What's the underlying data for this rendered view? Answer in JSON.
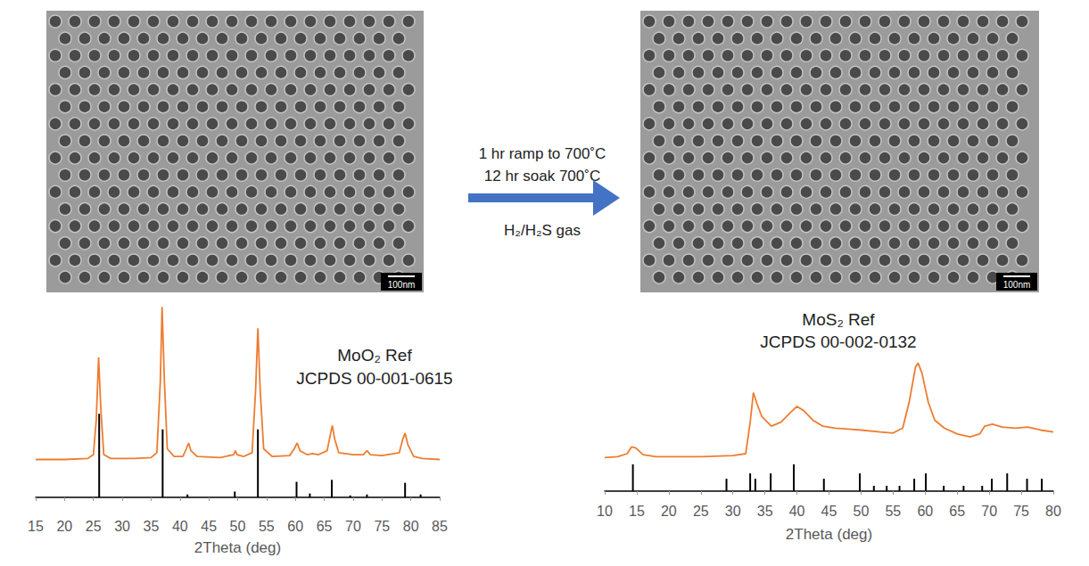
{
  "panels": {
    "sem_before": {
      "scale_bar": "100nm"
    },
    "sem_after": {
      "scale_bar": "100nm"
    },
    "process": {
      "lines": [
        "1 hr ramp to 700˚C",
        "12 hr soak 700˚C",
        "H₂/H₂S gas"
      ]
    }
  },
  "chart_data": [
    {
      "type": "line",
      "x_label": "2Theta (deg)",
      "annotations": [
        "MoO₂ Ref",
        "JCPDS 00-001-0615"
      ],
      "xlim": [
        15,
        85
      ],
      "xticks": [
        15,
        20,
        25,
        30,
        35,
        40,
        45,
        50,
        55,
        60,
        65,
        70,
        75,
        80,
        85
      ],
      "ylim": [
        0,
        100
      ],
      "tick_labels": "x",
      "series": [
        {
          "type": "line",
          "color": "#ed7d31",
          "x": [
            15,
            20,
            24,
            25,
            25.5,
            25.9,
            26.3,
            26.8,
            28,
            32,
            35,
            36,
            36.6,
            36.9,
            37.3,
            37.8,
            39,
            40.5,
            41.1,
            41.5,
            41.9,
            43,
            47,
            49.3,
            49.6,
            49.9,
            51,
            52.5,
            53.1,
            53.5,
            53.9,
            54.5,
            56,
            59,
            59.8,
            60.3,
            60.8,
            62,
            63,
            64,
            65.5,
            66.1,
            66.4,
            66.8,
            67.5,
            70,
            71.8,
            72.4,
            73,
            75,
            78,
            78.6,
            79,
            79.5,
            80.5,
            82,
            85
          ],
          "values": [
            19.5,
            19.5,
            20,
            22,
            40,
            72,
            45,
            22,
            20,
            20,
            20.5,
            23,
            60,
            98,
            60,
            25,
            21,
            21,
            25,
            28,
            24,
            21,
            20.5,
            22,
            24,
            22,
            21,
            23,
            55,
            87,
            55,
            25,
            21,
            21.5,
            25,
            28,
            24,
            22,
            22.5,
            22,
            24,
            33,
            37,
            30,
            23,
            22,
            22,
            24,
            22,
            21.5,
            23,
            30,
            33,
            27,
            21,
            20,
            19.5
          ]
        },
        {
          "type": "bar",
          "color": "#000000",
          "x": [
            26.0,
            37.0,
            41.3,
            49.5,
            53.5,
            60.2,
            62.5,
            66.3,
            69.5,
            72.4,
            79.0,
            81.7
          ],
          "values": [
            43,
            35,
            1.5,
            3,
            35,
            8,
            2,
            9,
            1,
            1.5,
            7.5,
            1.5
          ]
        }
      ]
    },
    {
      "type": "line",
      "x_label": "2Theta (deg)",
      "annotations": [
        "MoS₂ Ref",
        "JCPDS 00-002-0132"
      ],
      "xlim": [
        10,
        80
      ],
      "xticks": [
        10,
        15,
        20,
        25,
        30,
        35,
        40,
        45,
        50,
        55,
        60,
        65,
        70,
        75,
        80
      ],
      "ylim": [
        0,
        100
      ],
      "tick_labels": "x",
      "series": [
        {
          "type": "line",
          "color": "#ed7d31",
          "x": [
            10,
            12,
            13.5,
            14.2,
            14.8,
            16,
            18,
            25,
            30,
            32,
            32.7,
            33.2,
            33.8,
            34.5,
            36,
            37.5,
            39,
            40,
            41,
            42.5,
            44,
            46,
            48,
            50,
            53,
            55,
            56.5,
            57.5,
            58.5,
            58.9,
            59.5,
            60.5,
            61.5,
            63,
            65,
            67,
            68.5,
            69.3,
            70.5,
            72,
            74,
            76,
            78,
            80
          ],
          "values": [
            17,
            17.5,
            19,
            22.5,
            22,
            18.5,
            17.5,
            17.5,
            18,
            19,
            35,
            50,
            44,
            38,
            33,
            35,
            40,
            43,
            41,
            36,
            33,
            32,
            31.5,
            31,
            30,
            29.5,
            32,
            45,
            63,
            65,
            60,
            45,
            36,
            32,
            29,
            27.5,
            29,
            33,
            34,
            32.5,
            32,
            32.5,
            31,
            30
          ]
        },
        {
          "type": "bar",
          "color": "#000000",
          "x": [
            14.4,
            29.0,
            32.7,
            33.5,
            35.9,
            39.5,
            44.2,
            49.8,
            52.0,
            54.0,
            56.0,
            58.3,
            60.1,
            62.9,
            66.0,
            68.9,
            70.4,
            72.8,
            75.9,
            78.2
          ],
          "values": [
            13.6,
            6.3,
            9,
            6.3,
            9,
            13.6,
            6.3,
            9,
            2.7,
            2.7,
            2.7,
            6.3,
            9,
            2.7,
            2.7,
            2.7,
            6.3,
            9,
            6.3,
            6.3
          ]
        }
      ]
    }
  ]
}
